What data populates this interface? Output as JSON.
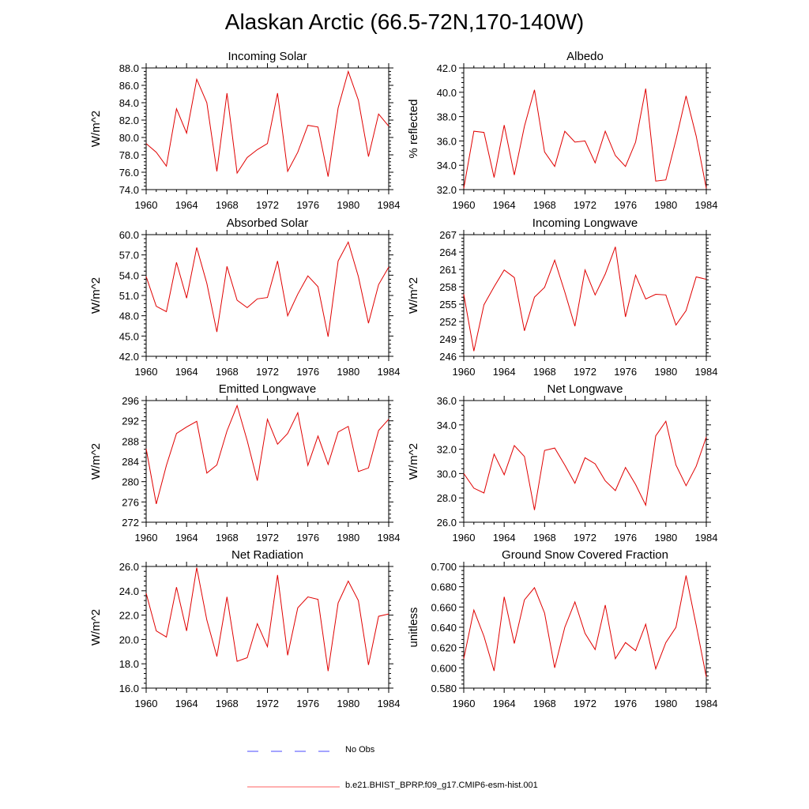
{
  "title": "Alaskan Arctic (66.5-72N,170-140W)",
  "legend": {
    "items": [
      {
        "label": "No Obs",
        "color": "#4a4aff",
        "style": "dashed"
      },
      {
        "label": "b.e21.BHIST_BPRP.f09_g17.CMIP6-esm-hist.001",
        "color": "#ff6060",
        "style": "solid"
      }
    ]
  },
  "chart_data": [
    {
      "type": "line",
      "title": "Incoming Solar",
      "ylabel": "W/m^2",
      "xlabel": "",
      "xlim": [
        1960,
        1984
      ],
      "ylim": [
        74,
        88
      ],
      "yticks": [
        74,
        76,
        78,
        80,
        82,
        84,
        86,
        88
      ],
      "ydec": 1,
      "xticks": [
        1960,
        1964,
        1968,
        1972,
        1976,
        1980,
        1984
      ],
      "x": [
        1960,
        1961,
        1962,
        1963,
        1964,
        1965,
        1966,
        1967,
        1968,
        1969,
        1970,
        1971,
        1972,
        1973,
        1974,
        1975,
        1976,
        1977,
        1978,
        1979,
        1980,
        1981,
        1982,
        1983,
        1984
      ],
      "series": [
        {
          "name": "b.e21.BHIST_BPRP.f09_g17.CMIP6-esm-hist.001",
          "values": [
            79.3,
            78.3,
            76.7,
            83.3,
            80.5,
            86.7,
            84.0,
            76.1,
            85.1,
            75.9,
            77.7,
            78.6,
            79.3,
            85.1,
            76.1,
            78.3,
            81.4,
            81.2,
            75.5,
            83.4,
            87.6,
            84.3,
            77.8,
            82.7,
            81.3
          ]
        }
      ]
    },
    {
      "type": "line",
      "title": "Albedo",
      "ylabel": "% reflected",
      "xlabel": "",
      "xlim": [
        1960,
        1984
      ],
      "ylim": [
        32,
        42
      ],
      "yticks": [
        32,
        34,
        36,
        38,
        40,
        42
      ],
      "ydec": 1,
      "xticks": [
        1960,
        1964,
        1968,
        1972,
        1976,
        1980,
        1984
      ],
      "x": [
        1960,
        1961,
        1962,
        1963,
        1964,
        1965,
        1966,
        1967,
        1968,
        1969,
        1970,
        1971,
        1972,
        1973,
        1974,
        1975,
        1976,
        1977,
        1978,
        1979,
        1980,
        1981,
        1982,
        1983,
        1984
      ],
      "series": [
        {
          "name": "b.e21.BHIST_BPRP.f09_g17.CMIP6-esm-hist.001",
          "values": [
            32.1,
            36.8,
            36.7,
            33.0,
            37.3,
            33.2,
            37.2,
            40.2,
            35.1,
            33.9,
            36.8,
            35.9,
            36.0,
            34.2,
            36.8,
            34.8,
            33.9,
            35.9,
            40.3,
            32.7,
            32.8,
            36.1,
            39.7,
            36.4,
            32.1
          ]
        }
      ]
    },
    {
      "type": "line",
      "title": "Absorbed Solar",
      "ylabel": "W/m^2",
      "xlabel": "",
      "xlim": [
        1960,
        1984
      ],
      "ylim": [
        42,
        60
      ],
      "yticks": [
        42,
        45,
        48,
        51,
        54,
        57,
        60
      ],
      "ydec": 1,
      "xticks": [
        1960,
        1964,
        1968,
        1972,
        1976,
        1980,
        1984
      ],
      "x": [
        1960,
        1961,
        1962,
        1963,
        1964,
        1965,
        1966,
        1967,
        1968,
        1969,
        1970,
        1971,
        1972,
        1973,
        1974,
        1975,
        1976,
        1977,
        1978,
        1979,
        1980,
        1981,
        1982,
        1983,
        1984
      ],
      "series": [
        {
          "name": "b.e21.BHIST_BPRP.f09_g17.CMIP6-esm-hist.001",
          "values": [
            53.8,
            49.4,
            48.6,
            55.9,
            50.6,
            58.1,
            52.8,
            45.6,
            55.3,
            50.3,
            49.2,
            50.5,
            50.7,
            56.1,
            48.0,
            51.2,
            53.9,
            52.3,
            44.9,
            56.1,
            58.9,
            53.8,
            46.9,
            52.6,
            55.2
          ]
        }
      ]
    },
    {
      "type": "line",
      "title": "Incoming Longwave",
      "ylabel": "W/m^2",
      "xlabel": "",
      "xlim": [
        1960,
        1984
      ],
      "ylim": [
        246,
        267
      ],
      "yticks": [
        246,
        249,
        252,
        255,
        258,
        261,
        264,
        267
      ],
      "ydec": 0,
      "xticks": [
        1960,
        1964,
        1968,
        1972,
        1976,
        1980,
        1984
      ],
      "x": [
        1960,
        1961,
        1962,
        1963,
        1964,
        1965,
        1966,
        1967,
        1968,
        1969,
        1970,
        1971,
        1972,
        1973,
        1974,
        1975,
        1976,
        1977,
        1978,
        1979,
        1980,
        1981,
        1982,
        1983,
        1984
      ],
      "series": [
        {
          "name": "b.e21.BHIST_BPRP.f09_g17.CMIP6-esm-hist.001",
          "values": [
            256.7,
            246.9,
            254.9,
            258.0,
            260.9,
            259.6,
            250.4,
            256.2,
            257.9,
            262.6,
            257.1,
            251.2,
            260.9,
            256.6,
            260.2,
            264.9,
            252.8,
            260.0,
            255.9,
            256.7,
            256.6,
            251.4,
            253.9,
            259.7,
            259.3
          ]
        }
      ]
    },
    {
      "type": "line",
      "title": "Emitted Longwave",
      "ylabel": "W/m^2",
      "xlabel": "",
      "xlim": [
        1960,
        1984
      ],
      "ylim": [
        272,
        296
      ],
      "yticks": [
        272,
        276,
        280,
        284,
        288,
        292,
        296
      ],
      "ydec": 0,
      "xticks": [
        1960,
        1964,
        1968,
        1972,
        1976,
        1980,
        1984
      ],
      "x": [
        1960,
        1961,
        1962,
        1963,
        1964,
        1965,
        1966,
        1967,
        1968,
        1969,
        1970,
        1971,
        1972,
        1973,
        1974,
        1975,
        1976,
        1977,
        1978,
        1979,
        1980,
        1981,
        1982,
        1983,
        1984
      ],
      "series": [
        {
          "name": "b.e21.BHIST_BPRP.f09_g17.CMIP6-esm-hist.001",
          "values": [
            286.5,
            275.6,
            283.2,
            289.5,
            290.8,
            291.9,
            281.7,
            283.3,
            290.0,
            295.0,
            288.1,
            280.2,
            292.3,
            287.4,
            289.5,
            293.6,
            283.2,
            289.0,
            283.4,
            289.8,
            290.9,
            282.0,
            282.7,
            290.1,
            292.3
          ]
        }
      ]
    },
    {
      "type": "line",
      "title": "Net Longwave",
      "ylabel": "W/m^2",
      "xlabel": "",
      "xlim": [
        1960,
        1984
      ],
      "ylim": [
        26,
        36
      ],
      "yticks": [
        26,
        28,
        30,
        32,
        34,
        36
      ],
      "ydec": 1,
      "xticks": [
        1960,
        1964,
        1968,
        1972,
        1976,
        1980,
        1984
      ],
      "x": [
        1960,
        1961,
        1962,
        1963,
        1964,
        1965,
        1966,
        1967,
        1968,
        1969,
        1970,
        1971,
        1972,
        1973,
        1974,
        1975,
        1976,
        1977,
        1978,
        1979,
        1980,
        1981,
        1982,
        1983,
        1984
      ],
      "series": [
        {
          "name": "b.e21.BHIST_BPRP.f09_g17.CMIP6-esm-hist.001",
          "values": [
            30.0,
            28.8,
            28.4,
            31.6,
            29.9,
            32.3,
            31.4,
            27.0,
            31.9,
            32.1,
            30.7,
            29.2,
            31.3,
            30.8,
            29.4,
            28.6,
            30.5,
            29.1,
            27.4,
            33.1,
            34.3,
            30.7,
            29.0,
            30.6,
            33.0
          ]
        }
      ]
    },
    {
      "type": "line",
      "title": "Net Radiation",
      "ylabel": "W/m^2",
      "xlabel": "",
      "xlim": [
        1960,
        1984
      ],
      "ylim": [
        16,
        26
      ],
      "yticks": [
        16,
        18,
        20,
        22,
        24,
        26
      ],
      "ydec": 1,
      "xticks": [
        1960,
        1964,
        1968,
        1972,
        1976,
        1980,
        1984
      ],
      "x": [
        1960,
        1961,
        1962,
        1963,
        1964,
        1965,
        1966,
        1967,
        1968,
        1969,
        1970,
        1971,
        1972,
        1973,
        1974,
        1975,
        1976,
        1977,
        1978,
        1979,
        1980,
        1981,
        1982,
        1983,
        1984
      ],
      "series": [
        {
          "name": "b.e21.BHIST_BPRP.f09_g17.CMIP6-esm-hist.001",
          "values": [
            23.8,
            20.7,
            20.2,
            24.3,
            20.7,
            25.9,
            21.6,
            18.6,
            23.5,
            18.2,
            18.5,
            21.3,
            19.4,
            25.3,
            18.7,
            22.6,
            23.5,
            23.3,
            17.4,
            23.0,
            24.8,
            23.2,
            17.9,
            21.9,
            22.1
          ]
        }
      ]
    },
    {
      "type": "line",
      "title": "Ground Snow Covered Fraction",
      "ylabel": "unitless",
      "xlabel": "",
      "xlim": [
        1960,
        1984
      ],
      "ylim": [
        0.58,
        0.7
      ],
      "yticks": [
        0.58,
        0.6,
        0.62,
        0.64,
        0.66,
        0.68,
        0.7
      ],
      "ydec": 3,
      "xticks": [
        1960,
        1964,
        1968,
        1972,
        1976,
        1980,
        1984
      ],
      "x": [
        1960,
        1961,
        1962,
        1963,
        1964,
        1965,
        1966,
        1967,
        1968,
        1969,
        1970,
        1971,
        1972,
        1973,
        1974,
        1975,
        1976,
        1977,
        1978,
        1979,
        1980,
        1981,
        1982,
        1983,
        1984
      ],
      "series": [
        {
          "name": "b.e21.BHIST_BPRP.f09_g17.CMIP6-esm-hist.001",
          "values": [
            0.609,
            0.657,
            0.631,
            0.597,
            0.67,
            0.624,
            0.667,
            0.679,
            0.654,
            0.6,
            0.64,
            0.665,
            0.634,
            0.618,
            0.662,
            0.609,
            0.625,
            0.617,
            0.643,
            0.599,
            0.625,
            0.64,
            0.691,
            0.642,
            0.591
          ]
        }
      ]
    }
  ]
}
